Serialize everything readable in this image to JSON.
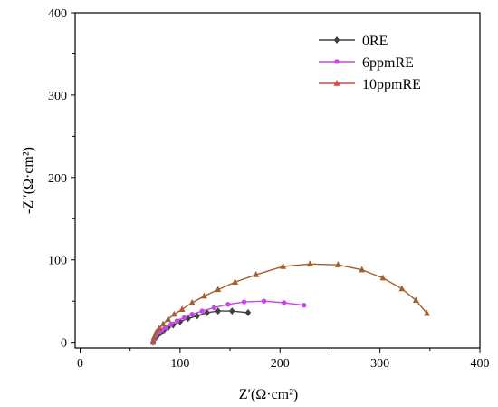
{
  "chart_data": {
    "type": "line",
    "title": "",
    "xlabel": "Z′(Ω·cm²)",
    "ylabel": "-Z″(Ω·cm²)",
    "xlim": [
      -5,
      400
    ],
    "ylim": [
      -7,
      400
    ],
    "x_ticks": [
      0,
      100,
      200,
      300,
      400
    ],
    "y_ticks": [
      0,
      100,
      200,
      300,
      400
    ],
    "x_tick_labels": [
      "0",
      "100",
      "200",
      "300",
      "400"
    ],
    "y_tick_labels": [
      "0",
      "100",
      "200",
      "300",
      "400"
    ],
    "grid": false,
    "legend_position": "top-right",
    "series": [
      {
        "name": "0RE",
        "color": "#404040",
        "marker": "diamond",
        "x": [
          73,
          74,
          76,
          78,
          81,
          84,
          88,
          93,
          100,
          108,
          117,
          127,
          138,
          152,
          168
        ],
        "y": [
          0,
          3,
          6,
          9,
          12,
          15,
          18,
          21,
          25,
          29,
          32,
          36,
          38,
          38,
          36
        ]
      },
      {
        "name": "6ppmRE",
        "color": "#cc44ee",
        "marker": "circle",
        "x": [
          73,
          74,
          76,
          79,
          82,
          86,
          91,
          97,
          104,
          112,
          122,
          134,
          148,
          164,
          184,
          204,
          224
        ],
        "y": [
          0,
          4,
          8,
          12,
          15,
          18,
          22,
          26,
          30,
          34,
          38,
          42,
          46,
          49,
          50,
          48,
          45
        ]
      },
      {
        "name": "10ppmRE",
        "color": "#e04444",
        "line_color": "#a06030",
        "marker": "triangle",
        "x": [
          73,
          74,
          76,
          79,
          83,
          88,
          94,
          102,
          112,
          124,
          138,
          155,
          176,
          203,
          230,
          258,
          282,
          303,
          322,
          336,
          347
        ],
        "y": [
          0,
          6,
          12,
          17,
          22,
          28,
          34,
          40,
          48,
          56,
          64,
          73,
          82,
          92,
          95,
          94,
          88,
          78,
          65,
          51,
          35
        ]
      }
    ]
  }
}
